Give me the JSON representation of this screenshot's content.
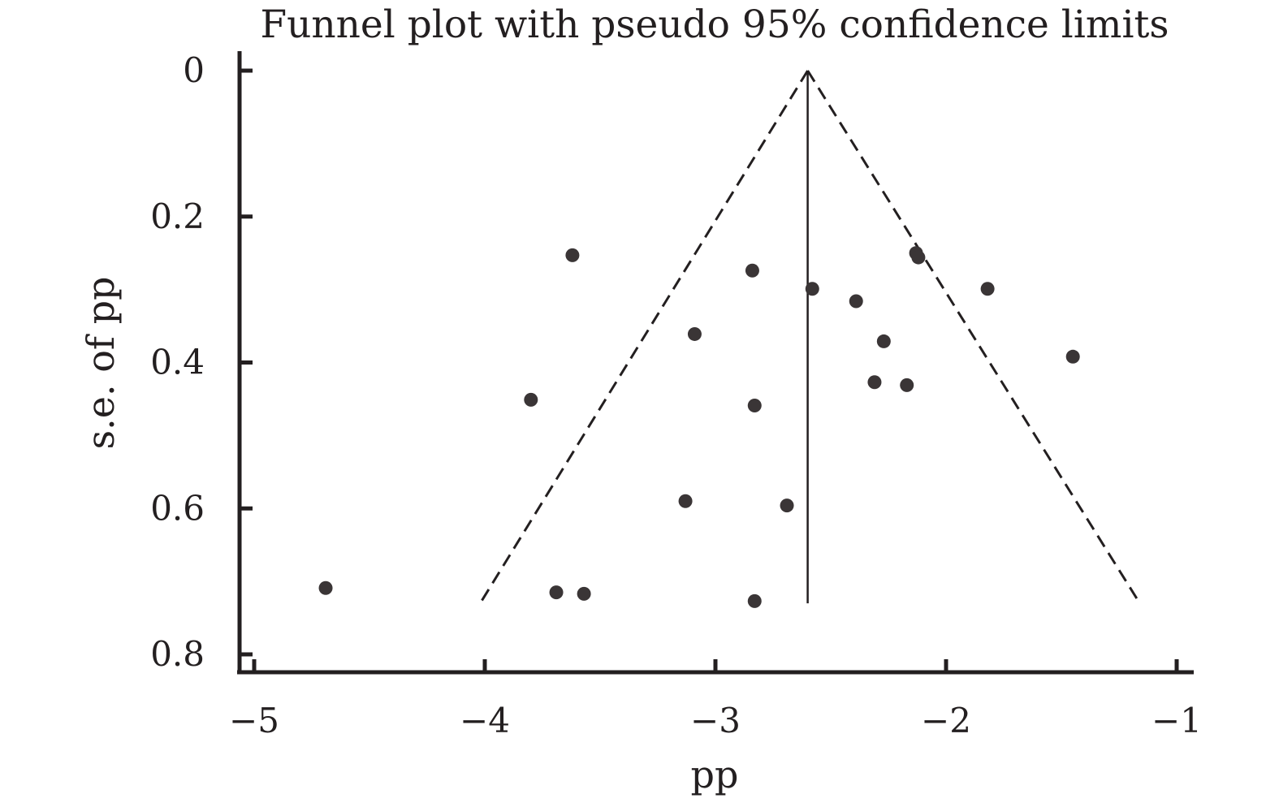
{
  "chart_data": {
    "type": "scatter",
    "title": "Funnel plot with pseudo 95% confidence limits",
    "xlabel": "pp",
    "ylabel": "s.e. of pp",
    "xlim": [
      -5.08,
      -0.92
    ],
    "ylim": [
      0,
      0.82
    ],
    "y_inverted": true,
    "grid": false,
    "x_ticks": [
      -5,
      -4,
      -3,
      -2,
      -1
    ],
    "x_tick_labels": [
      "−5",
      "−4",
      "−3",
      "−2",
      "−1"
    ],
    "y_ticks": [
      0,
      0.2,
      0.4,
      0.6,
      0.8
    ],
    "y_tick_labels": [
      "0",
      "0.2",
      "0.4",
      "0.6",
      "0.8"
    ],
    "pooled_estimate": -2.6,
    "pseudo_ci_limits": {
      "lower": [
        [
          -2.6,
          0
        ],
        [
          -4.02,
          0.73
        ]
      ],
      "upper": [
        [
          -2.6,
          0
        ],
        [
          -1.16,
          0.73
        ]
      ]
    },
    "points": [
      {
        "x": -3.62,
        "y": 0.253
      },
      {
        "x": -2.13,
        "y": 0.25
      },
      {
        "x": -2.12,
        "y": 0.256
      },
      {
        "x": -2.84,
        "y": 0.274
      },
      {
        "x": -2.58,
        "y": 0.299
      },
      {
        "x": -1.82,
        "y": 0.299
      },
      {
        "x": -2.39,
        "y": 0.316
      },
      {
        "x": -3.09,
        "y": 0.361
      },
      {
        "x": -2.27,
        "y": 0.371
      },
      {
        "x": -1.45,
        "y": 0.392
      },
      {
        "x": -2.31,
        "y": 0.427
      },
      {
        "x": -2.17,
        "y": 0.431
      },
      {
        "x": -3.8,
        "y": 0.451
      },
      {
        "x": -2.83,
        "y": 0.459
      },
      {
        "x": -3.13,
        "y": 0.59
      },
      {
        "x": -2.69,
        "y": 0.596
      },
      {
        "x": -4.69,
        "y": 0.709
      },
      {
        "x": -3.69,
        "y": 0.715
      },
      {
        "x": -3.57,
        "y": 0.717
      },
      {
        "x": -2.83,
        "y": 0.727
      }
    ]
  }
}
